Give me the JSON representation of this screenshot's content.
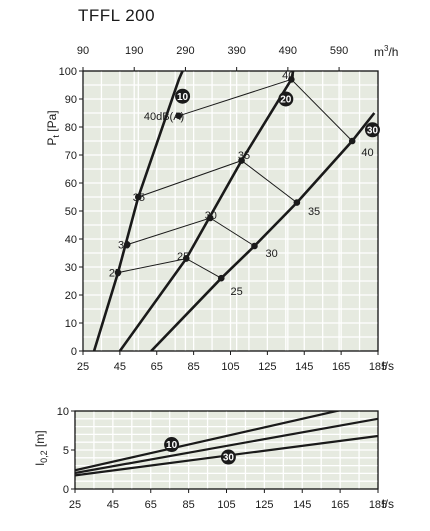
{
  "title": "TFFL 200",
  "chart_data": [
    {
      "type": "line",
      "ylabel_main": "P",
      "ylabel_sub": "t",
      "ylabel_unit": "[Pa]",
      "xlabel": "l/s",
      "x2label": "m",
      "x2label_sup": "3",
      "x2label_unit": "/h",
      "xlim": [
        25,
        185
      ],
      "ylim": [
        0,
        100
      ],
      "xticks": [
        25,
        45,
        65,
        85,
        105,
        125,
        145,
        165,
        185
      ],
      "x2ticks": [
        90,
        190,
        290,
        390,
        490,
        590
      ],
      "yticks": [
        0,
        10,
        20,
        30,
        40,
        50,
        60,
        70,
        80,
        90,
        100
      ],
      "series": [
        {
          "name": "10",
          "points": [
            [
              31,
              0
            ],
            [
              44,
              28
            ],
            [
              55,
              55
            ],
            [
              77,
              97
            ],
            [
              79,
              100
            ]
          ]
        },
        {
          "name": "20",
          "points": [
            [
              45,
              0
            ],
            [
              81,
              33
            ],
            [
              111,
              68
            ],
            [
              138,
              97
            ],
            [
              139,
              100
            ]
          ]
        },
        {
          "name": "30",
          "points": [
            [
              62,
              0
            ],
            [
              100,
              26
            ],
            [
              118,
              37.5
            ],
            [
              141,
              53
            ],
            [
              171,
              75
            ],
            [
              183,
              85
            ]
          ]
        }
      ],
      "series_labels": [
        {
          "text": "10",
          "x": 79,
          "y": 91
        },
        {
          "text": "20",
          "x": 135,
          "y": 90
        },
        {
          "text": "30",
          "x": 182,
          "y": 79
        }
      ],
      "db_lines": [
        {
          "name": "25",
          "points": [
            [
              44,
              28
            ],
            [
              81,
              33
            ],
            [
              100,
              26
            ]
          ]
        },
        {
          "name": "30",
          "points": [
            [
              49,
              38
            ],
            [
              94,
              47.5
            ],
            [
              118,
              37.5
            ]
          ]
        },
        {
          "name": "35",
          "points": [
            [
              55,
              55
            ],
            [
              111,
              68
            ],
            [
              141,
              53
            ]
          ]
        },
        {
          "name": "40",
          "points": [
            [
              77,
              84
            ],
            [
              138,
              97
            ],
            [
              171,
              75
            ]
          ]
        }
      ],
      "annotations": [
        {
          "text": "40dB(A)",
          "x": 58,
          "y": 84
        },
        {
          "text": "40",
          "x": 133,
          "y": 98.5
        },
        {
          "text": "40",
          "x": 176,
          "y": 71
        },
        {
          "text": "35",
          "x": 52,
          "y": 55
        },
        {
          "text": "35",
          "x": 109,
          "y": 70
        },
        {
          "text": "35",
          "x": 147,
          "y": 50
        },
        {
          "text": "30",
          "x": 44,
          "y": 38
        },
        {
          "text": "30",
          "x": 91,
          "y": 48.5
        },
        {
          "text": "30",
          "x": 124,
          "y": 35
        },
        {
          "text": "25",
          "x": 39,
          "y": 28
        },
        {
          "text": "25",
          "x": 76,
          "y": 34
        },
        {
          "text": "25",
          "x": 105,
          "y": 21.5
        }
      ]
    },
    {
      "type": "line",
      "ylabel_main": "l",
      "ylabel_sub": "0,2",
      "ylabel_unit": "[m]",
      "xlabel": "l/s",
      "xlim": [
        25,
        185
      ],
      "ylim": [
        0,
        10
      ],
      "xticks": [
        25,
        45,
        65,
        85,
        105,
        125,
        145,
        165,
        185
      ],
      "yticks": [
        0,
        5,
        10
      ],
      "series": [
        {
          "name": "10",
          "points": [
            [
              25,
              2.4
            ],
            [
              185,
              11.2
            ]
          ]
        },
        {
          "name": "20",
          "points": [
            [
              25,
              2.05
            ],
            [
              185,
              9.0
            ]
          ]
        },
        {
          "name": "30",
          "points": [
            [
              25,
              1.75
            ],
            [
              185,
              6.8
            ]
          ]
        }
      ],
      "series_labels": [
        {
          "text": "10",
          "x": 76,
          "y": 5.7
        },
        {
          "text": "30",
          "x": 106,
          "y": 4.1
        }
      ]
    }
  ]
}
